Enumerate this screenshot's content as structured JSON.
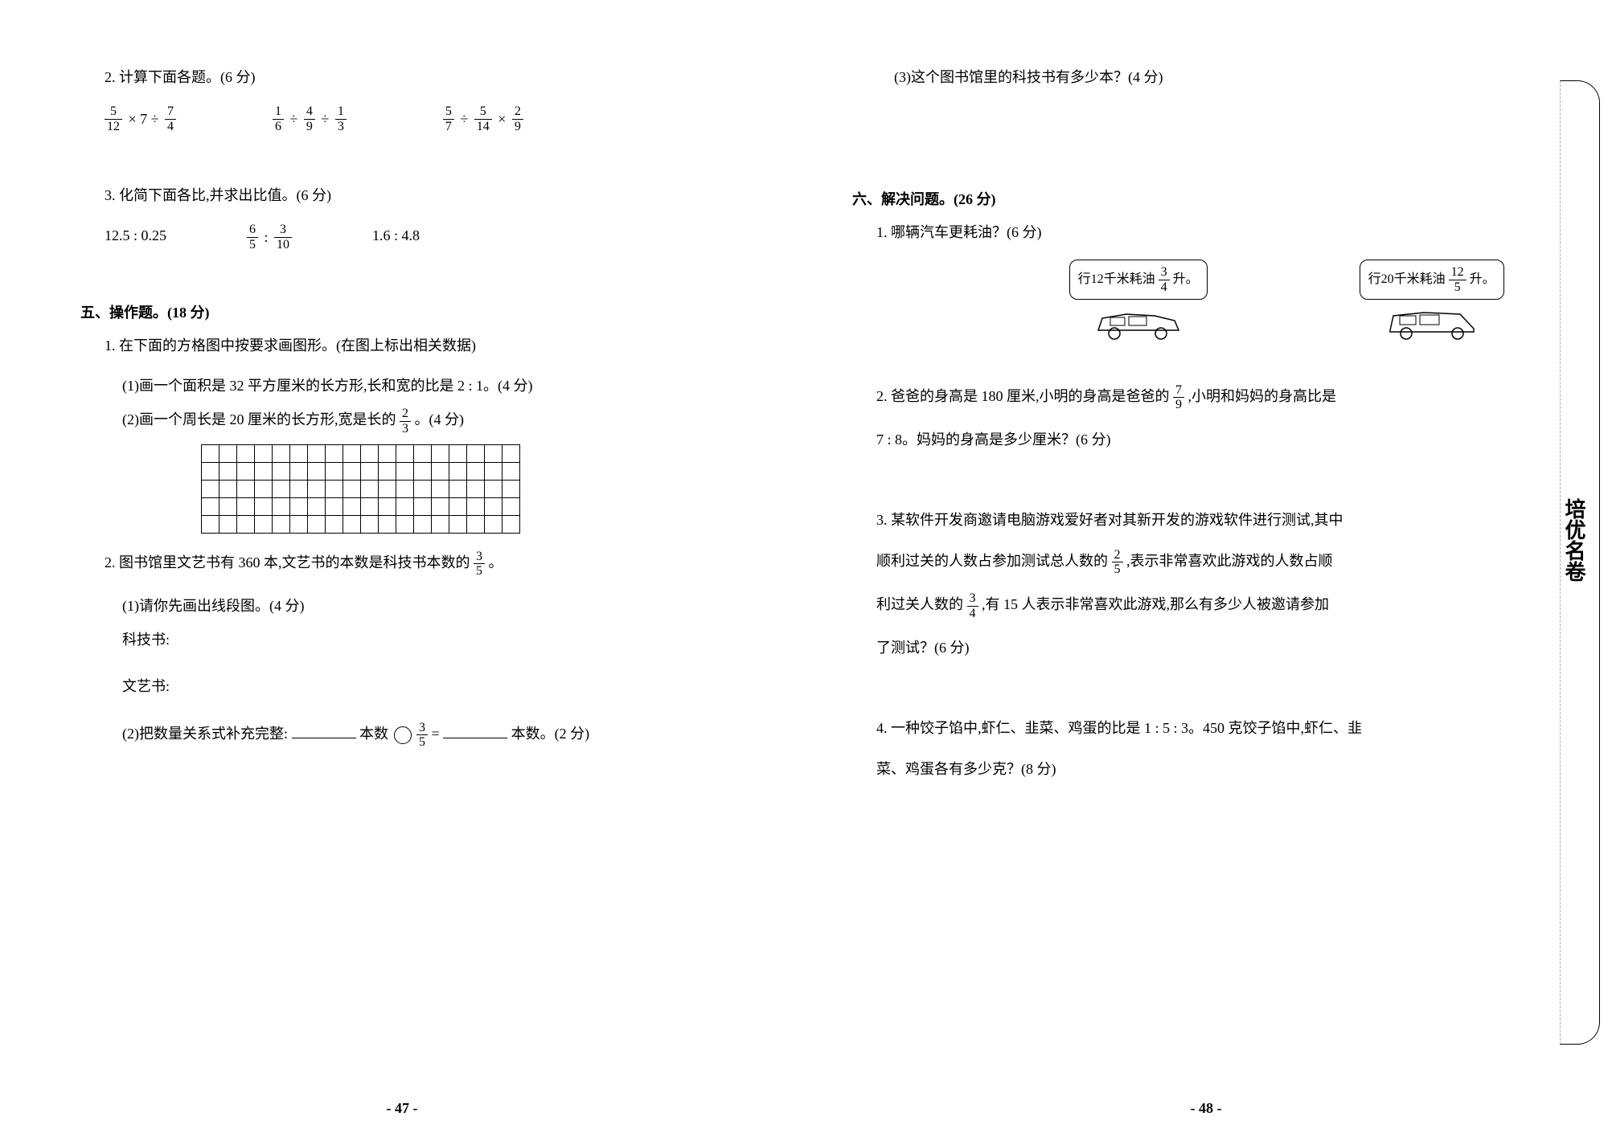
{
  "left": {
    "q2": {
      "title": "2. 计算下面各题。(6 分)",
      "expr1_parts": [
        "5",
        "12",
        "× 7 ÷",
        "7",
        "4"
      ],
      "expr2_parts": [
        "1",
        "6",
        "÷",
        "4",
        "9",
        "÷",
        "1",
        "3"
      ],
      "expr3_parts": [
        "5",
        "7",
        "÷",
        "5",
        "14",
        "×",
        "2",
        "9"
      ]
    },
    "q3": {
      "title": "3. 化简下面各比,并求出比值。(6 分)",
      "e1": "12.5 : 0.25",
      "e2_parts": [
        "6",
        "5",
        ":",
        "3",
        "10"
      ],
      "e3": "1.6 : 4.8"
    },
    "section5": {
      "title": "五、操作题。(18 分)",
      "q1": "1. 在下面的方格图中按要求画图形。(在图上标出相关数据)",
      "q1a": "(1)画一个面积是 32 平方厘米的长方形,长和宽的比是 2 : 1。(4 分)",
      "q1b_prefix": "(2)画一个周长是 20 厘米的长方形,宽是长的",
      "q1b_frac": [
        "2",
        "3"
      ],
      "q1b_suffix": "。(4 分)",
      "q2_prefix": "2. 图书馆里文艺书有 360 本,文艺书的本数是科技书本数的",
      "q2_frac": [
        "3",
        "5"
      ],
      "q2_suffix": "。",
      "q2a": "(1)请你先画出线段图。(4 分)",
      "label1": "科技书:",
      "label2": "文艺书:",
      "q2b_prefix": "(2)把数量关系式补充完整:",
      "q2b_mid1": "本数",
      "q2b_frac": [
        "3",
        "5"
      ],
      "q2b_mid2": " = ",
      "q2b_suffix": "本数。(2 分)"
    },
    "pageno": "- 47 -"
  },
  "right": {
    "q3c": "(3)这个图书馆里的科技书有多少本？(4 分)",
    "section6": {
      "title": "六、解决问题。(26 分)",
      "q1": "1. 哪辆汽车更耗油？(6 分)",
      "car1_prefix": "行12千米耗油",
      "car1_frac": [
        "3",
        "4"
      ],
      "car1_suffix": "升。",
      "car2_prefix": "行20千米耗油",
      "car2_frac": [
        "12",
        "5"
      ],
      "car2_suffix": "升。",
      "q2_prefix": "2. 爸爸的身高是 180 厘米,小明的身高是爸爸的",
      "q2_frac": [
        "7",
        "9"
      ],
      "q2_suffix": ",小明和妈妈的身高比是",
      "q2_line2": "7 : 8。妈妈的身高是多少厘米？(6 分)",
      "q3_line1": "3. 某软件开发商邀请电脑游戏爱好者对其新开发的游戏软件进行测试,其中",
      "q3_l2_prefix": "顺利过关的人数占参加测试总人数的",
      "q3_l2_frac": [
        "2",
        "5"
      ],
      "q3_l2_suffix": ",表示非常喜欢此游戏的人数占顺",
      "q3_l3_prefix": "利过关人数的",
      "q3_l3_frac": [
        "3",
        "4"
      ],
      "q3_l3_suffix": ",有 15 人表示非常喜欢此游戏,那么有多少人被邀请参加",
      "q3_line4": "了测试？(6 分)",
      "q4_line1": "4. 一种饺子馅中,虾仁、韭菜、鸡蛋的比是 1 : 5 : 3。450 克饺子馅中,虾仁、韭",
      "q4_line2": "菜、鸡蛋各有多少克？(8 分)"
    },
    "pageno": "- 48 -",
    "sidelabel": "培优名卷"
  },
  "grid": {
    "rows": 5,
    "cols": 18
  }
}
